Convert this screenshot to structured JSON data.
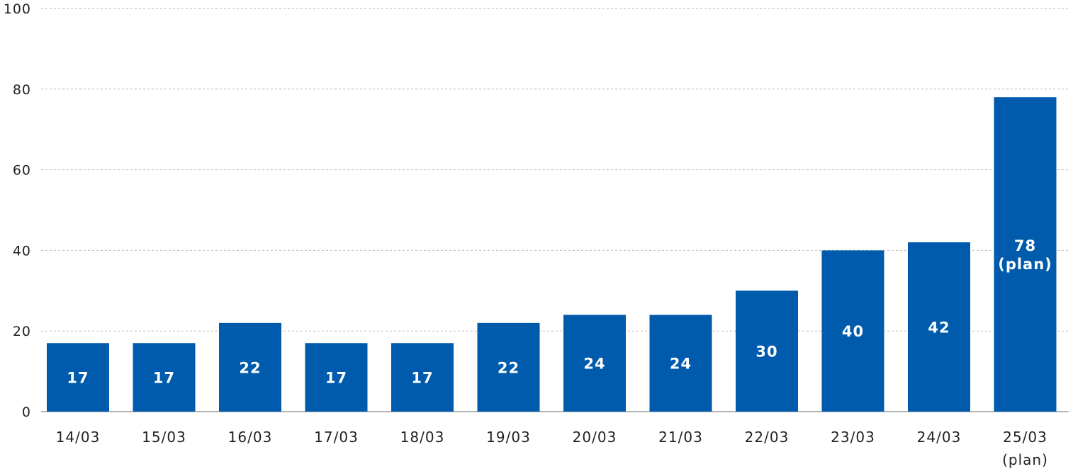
{
  "chart_data": {
    "type": "bar",
    "categories": [
      "14/03",
      "15/03",
      "16/03",
      "17/03",
      "18/03",
      "19/03",
      "20/03",
      "21/03",
      "22/03",
      "23/03",
      "24/03",
      "25/03\n(plan)"
    ],
    "values": [
      17,
      17,
      22,
      17,
      17,
      22,
      24,
      24,
      30,
      40,
      42,
      78
    ],
    "data_labels": [
      "17",
      "17",
      "22",
      "17",
      "17",
      "22",
      "24",
      "24",
      "30",
      "40",
      "42",
      "78\n(plan)"
    ],
    "yticks": [
      "0",
      "20",
      "40",
      "60",
      "80",
      "100"
    ],
    "ylim": [
      0,
      100
    ],
    "grid": true,
    "bar_color": "#005bac"
  }
}
